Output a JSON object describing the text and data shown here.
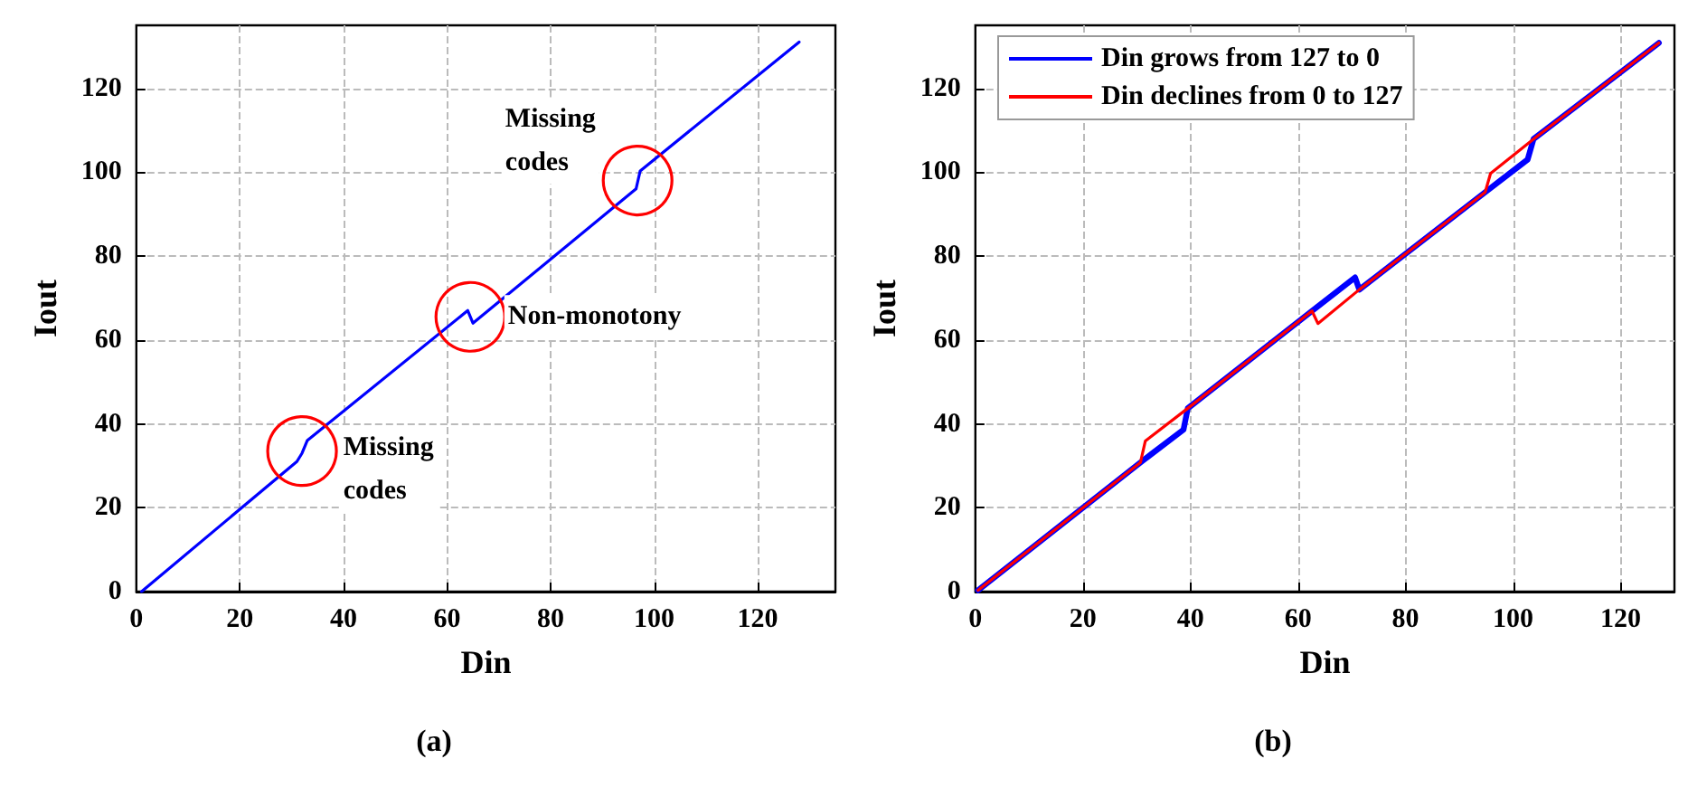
{
  "chart_data": [
    {
      "type": "line",
      "title": "(a)",
      "xlabel": "Din",
      "ylabel": "Iout",
      "xlim": [
        0,
        135
      ],
      "ylim": [
        0,
        135
      ],
      "xticks": [
        0,
        20,
        40,
        60,
        80,
        100,
        120
      ],
      "yticks": [
        0,
        20,
        40,
        60,
        80,
        100,
        120
      ],
      "grid": true,
      "legend": false,
      "marker": "none",
      "line_style": "solid",
      "series": [
        {
          "color": "#0000ff",
          "x": [
            1,
            31,
            32,
            33,
            64,
            65,
            96.5,
            97.3,
            128
          ],
          "values": [
            0,
            31,
            33,
            36,
            67,
            64,
            96,
            100.3,
            131
          ]
        }
      ],
      "annotations": [
        {
          "text": "Missing codes",
          "x": 32,
          "y": 33.5
        },
        {
          "text": "Non-monotony",
          "x": 64.5,
          "y": 65.5
        },
        {
          "text": "Missing codes",
          "x": 96.8,
          "y": 98
        }
      ]
    },
    {
      "type": "line",
      "title": "(b)",
      "xlabel": "Din",
      "ylabel": "Iout",
      "xlim": [
        0,
        130
      ],
      "ylim": [
        0,
        135
      ],
      "xticks": [
        0,
        20,
        40,
        60,
        80,
        100,
        120
      ],
      "yticks": [
        0,
        20,
        40,
        60,
        80,
        100,
        120
      ],
      "grid": true,
      "legend": "top left",
      "marker": "none",
      "line_style": "solid",
      "series": [
        {
          "name": "Din grows from 127 to 0",
          "color": "#0000ff",
          "x": [
            0.5,
            30.7,
            38.7,
            39.5,
            62.6,
            70.6,
            71.4,
            94.8,
            102.7,
            103.8,
            127.1
          ],
          "values": [
            0.3,
            30.8,
            38.6,
            43.7,
            66.9,
            74.9,
            72,
            95.2,
            103,
            107.9,
            130.8
          ]
        },
        {
          "name": "Din declines from 0 to 127",
          "color": "#ff0000",
          "x": [
            0.5,
            30.7,
            31.6,
            39.5,
            62.6,
            63.7,
            71.4,
            94.8,
            95.8,
            103.8,
            127.1
          ],
          "values": [
            0.3,
            30.8,
            35.9,
            43.7,
            66.9,
            63.9,
            72,
            95.2,
            99.7,
            107.9,
            130.8
          ]
        }
      ]
    }
  ]
}
